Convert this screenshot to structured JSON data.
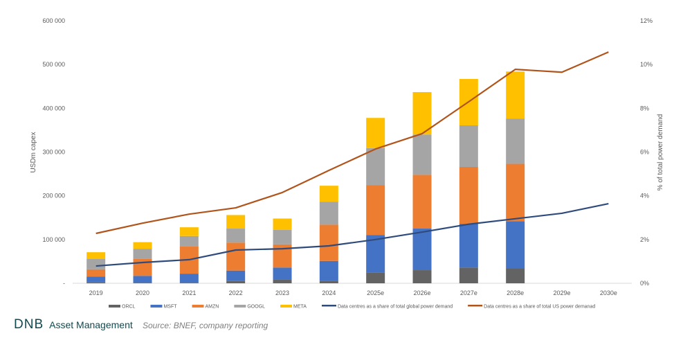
{
  "chart_data": {
    "type": "bar",
    "stacked": true,
    "categories": [
      "2019",
      "2020",
      "2021",
      "2022",
      "2023",
      "2024",
      "2025e",
      "2026e",
      "2027e",
      "2028e",
      "2029e",
      "2030e"
    ],
    "ylabel": "USDm capex",
    "ylim": [
      0,
      600000
    ],
    "yticks": [
      0,
      100000,
      200000,
      300000,
      400000,
      500000,
      600000
    ],
    "ytick_labels": [
      "-",
      "100 000",
      "200 000",
      "300 000",
      "400 000",
      "500 000",
      "600 000"
    ],
    "y2label": "% of total power demand",
    "y2lim": [
      0,
      12
    ],
    "y2ticks": [
      0,
      2,
      4,
      6,
      8,
      10,
      12
    ],
    "y2tick_labels": [
      "0%",
      "2%",
      "4%",
      "6%",
      "8%",
      "10%",
      "12%"
    ],
    "grid": false,
    "legend_position": "bottom",
    "series": [
      {
        "name": "ORCL",
        "kind": "bar",
        "color": "#636363",
        "values": [
          2000,
          1000,
          1000,
          5000,
          8000,
          6000,
          25000,
          30000,
          36000,
          34000,
          null,
          null
        ]
      },
      {
        "name": "MSFT",
        "kind": "bar",
        "color": "#4472c4",
        "values": [
          13000,
          16000,
          21000,
          24000,
          28000,
          45000,
          85000,
          95000,
          100000,
          108000,
          null,
          null
        ]
      },
      {
        "name": "AMZN",
        "kind": "bar",
        "color": "#ed7d31",
        "values": [
          17000,
          39000,
          62000,
          64000,
          53000,
          83000,
          114000,
          123000,
          130000,
          131000,
          null,
          null
        ]
      },
      {
        "name": "GOOGL",
        "kind": "bar",
        "color": "#a5a5a5",
        "values": [
          24000,
          23000,
          24000,
          32000,
          33000,
          52000,
          85000,
          92000,
          95000,
          103000,
          null,
          null
        ]
      },
      {
        "name": "META",
        "kind": "bar",
        "color": "#ffc000",
        "values": [
          15000,
          15000,
          20000,
          31000,
          26000,
          37000,
          69000,
          97000,
          106000,
          108000,
          null,
          null
        ]
      },
      {
        "name": "Data centres as a share of total global power demand",
        "kind": "line",
        "axis": "right",
        "color": "#2f4b7c",
        "values": [
          0.79,
          0.95,
          1.08,
          1.52,
          1.58,
          1.71,
          2.0,
          2.34,
          2.7,
          2.95,
          3.2,
          3.64
        ]
      },
      {
        "name": "Data centres as a share of total US power demanad",
        "kind": "line",
        "axis": "right",
        "color": "#b0541b",
        "values": [
          2.28,
          2.75,
          3.16,
          3.45,
          4.15,
          5.16,
          6.14,
          6.84,
          8.3,
          9.78,
          9.65,
          10.57
        ]
      }
    ]
  },
  "footer": {
    "logo": "DNB Asset Management",
    "logo_mark": "DNB",
    "logo_text": "Asset Management",
    "source": "Source: BNEF, company reporting"
  }
}
